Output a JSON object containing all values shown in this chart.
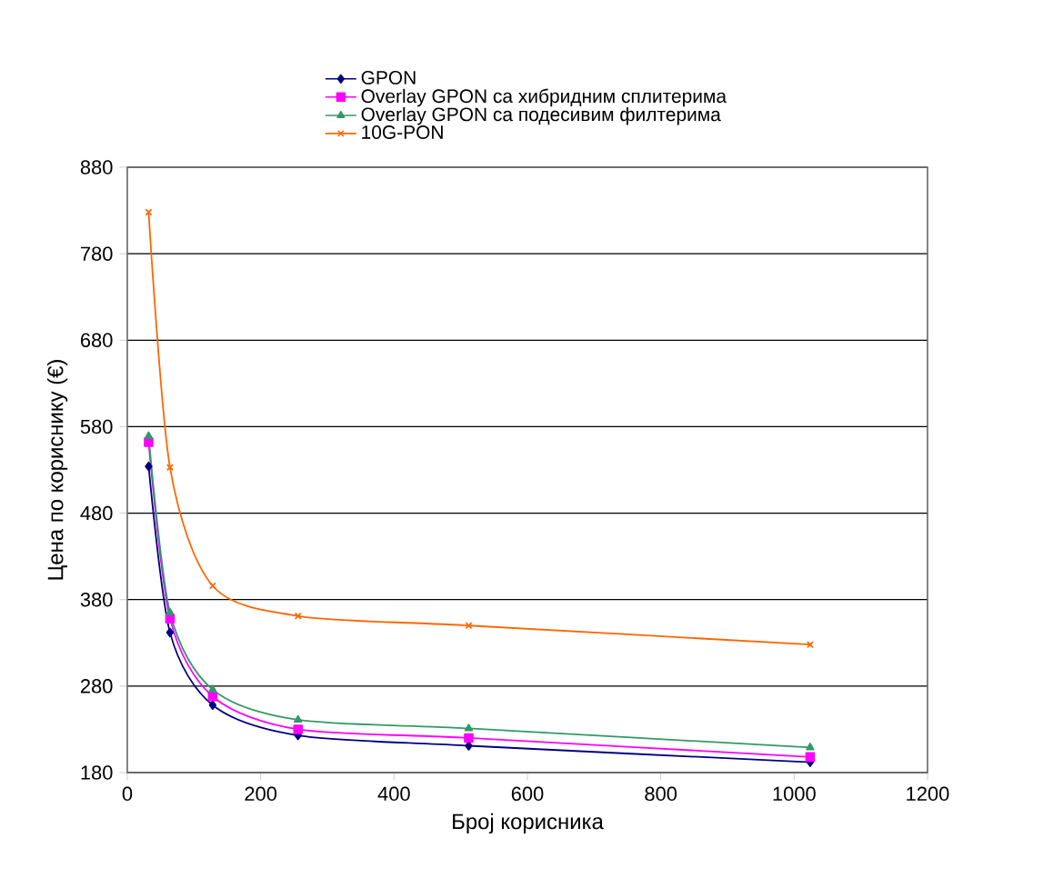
{
  "chart_data": {
    "type": "line",
    "xlabel": "Број корисника",
    "ylabel": "Цена по кориснику (€)",
    "x": [
      32,
      64,
      128,
      256,
      512,
      1024
    ],
    "series": [
      {
        "name": "GPON",
        "color": "#000080",
        "marker": "diamond",
        "values": [
          534,
          342,
          258,
          223,
          211,
          192
        ]
      },
      {
        "name": "Overlay GPON са хибридним сплитерима",
        "color": "#ff00ff",
        "marker": "square",
        "values": [
          562,
          358,
          268,
          230,
          220,
          198
        ]
      },
      {
        "name": "Overlay GPON са подесивим филтерима",
        "color": "#339966",
        "marker": "triangle",
        "values": [
          569,
          365,
          276,
          241,
          231,
          209
        ]
      },
      {
        "name": "10G-PON",
        "color": "#ff6600",
        "marker": "cross",
        "values": [
          828,
          533,
          396,
          361,
          350,
          328
        ]
      }
    ],
    "xlim": [
      0,
      1200
    ],
    "xticks": [
      0,
      200,
      400,
      600,
      800,
      1000,
      1200
    ],
    "ylim": [
      180,
      880
    ],
    "yticks": [
      180,
      280,
      380,
      480,
      580,
      680,
      780,
      880
    ],
    "grid": "y",
    "legend": "top",
    "line_style": "solid"
  }
}
